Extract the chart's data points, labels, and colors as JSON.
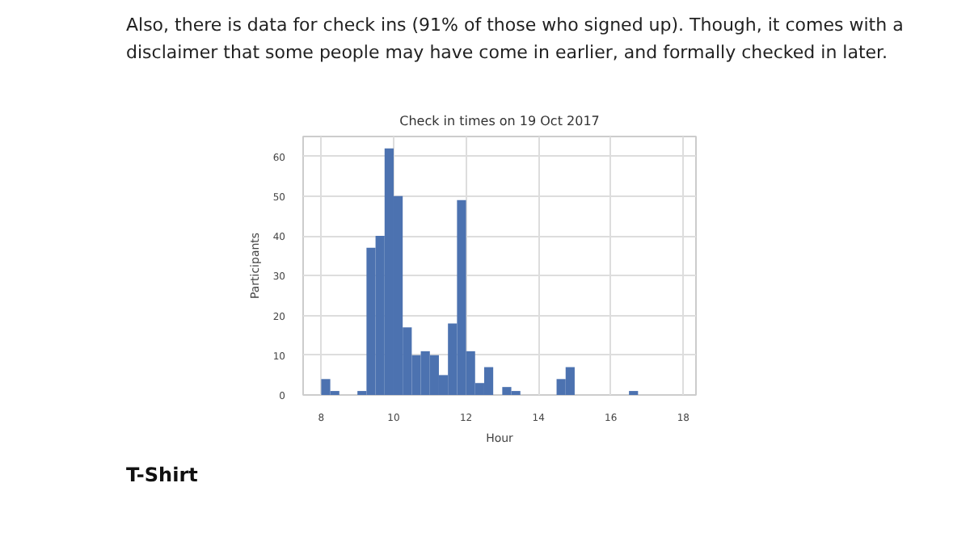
{
  "chart_data": {
    "type": "histogram",
    "title": "Check in times on 19 Oct 2017",
    "xlabel": "Hour",
    "ylabel": "Participants",
    "bins": [
      8.0,
      8.25,
      8.5,
      8.75,
      9.0,
      9.25,
      9.5,
      9.75,
      10.0,
      10.25,
      10.5,
      10.75,
      11.0,
      11.25,
      11.5,
      11.75,
      12.0,
      12.25,
      12.5,
      12.75,
      13.0,
      13.25,
      13.5,
      13.75,
      14.0,
      14.25,
      14.5,
      14.75,
      15.0,
      15.25,
      15.5,
      15.75,
      16.0,
      16.25,
      16.5,
      16.75
    ],
    "values": [
      4,
      1,
      0,
      0,
      1,
      37,
      40,
      62,
      50,
      17,
      10,
      11,
      10,
      5,
      18,
      49,
      11,
      3,
      7,
      0,
      2,
      1,
      0,
      0,
      0,
      0,
      4,
      7,
      0,
      0,
      0,
      0,
      0,
      0,
      1
    ],
    "color": "#4c72b0",
    "xlim": [
      7.5,
      18.35
    ],
    "ylim": [
      0,
      65
    ],
    "xticks": [
      8,
      10,
      12,
      14,
      16,
      18
    ],
    "yticks": [
      0,
      10,
      20,
      30,
      40,
      50,
      60
    ],
    "grid": true,
    "annotations": [
      "Also, there is data for check ins (91% of those who signed up). Though, it comes with a disclaimer that some people may have come in earlier, and formally checked in later.",
      "T-Shirt"
    ]
  }
}
